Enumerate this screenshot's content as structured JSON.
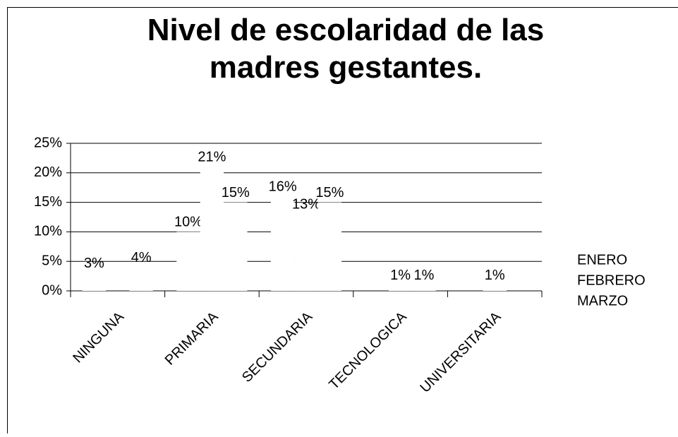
{
  "chart_data": {
    "type": "bar",
    "title": "Nivel de escolaridad de las madres gestantes.",
    "categories": [
      "NINGUNA",
      "PRIMARIA",
      "SECUNDARIA",
      "TECNOLOGICA",
      "UNIVERSITARIA"
    ],
    "series": [
      {
        "name": "ENERO",
        "color": "#ffffff",
        "values": [
          3,
          10,
          16,
          null,
          null
        ],
        "value_labels": [
          "3%",
          "10%",
          "16%",
          null,
          null
        ]
      },
      {
        "name": "FEBRERO",
        "color": "#ffffff",
        "values": [
          null,
          21,
          13,
          1,
          1
        ],
        "value_labels": [
          null,
          "21%",
          "13%",
          "1%",
          "1%"
        ]
      },
      {
        "name": "MARZO",
        "color": "#ffffff",
        "values": [
          4,
          15,
          15,
          1,
          null
        ],
        "value_labels": [
          "4%",
          "15%",
          "15%",
          "1%",
          null
        ]
      }
    ],
    "ylim": [
      0,
      25
    ],
    "yticks": [
      {
        "value": 0,
        "label": "0%"
      },
      {
        "value": 5,
        "label": "5%"
      },
      {
        "value": 10,
        "label": "10%"
      },
      {
        "value": 15,
        "label": "15%"
      },
      {
        "value": 20,
        "label": "20%"
      },
      {
        "value": 25,
        "label": "25%"
      }
    ],
    "grid": true,
    "legend": "right"
  }
}
